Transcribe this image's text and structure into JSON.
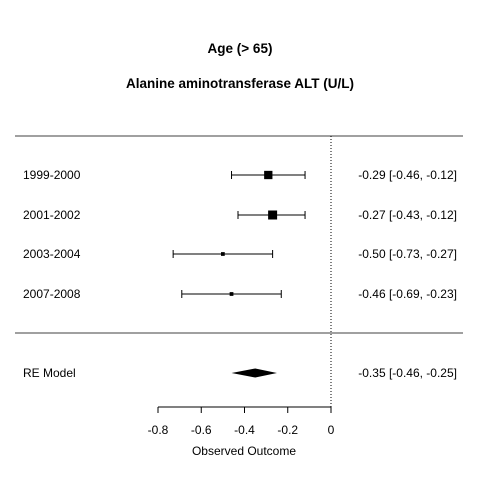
{
  "chart_data": {
    "type": "forest",
    "title": "Age (> 65)",
    "subtitle": "Alanine aminotransferase ALT (U/L)",
    "xlabel": "Observed Outcome",
    "xlim": [
      -0.8,
      0
    ],
    "ticks": [
      -0.8,
      -0.6,
      -0.4,
      -0.2,
      0
    ],
    "tick_labels": [
      "-0.8",
      "-0.6",
      "-0.4",
      "-0.2",
      "0"
    ],
    "reference_line": 0,
    "studies": [
      {
        "label": "1999-2000",
        "estimate": -0.29,
        "lower": -0.46,
        "upper": -0.12,
        "weight": 0.9,
        "ci_text": "-0.29 [-0.46, -0.12]"
      },
      {
        "label": "2001-2002",
        "estimate": -0.27,
        "lower": -0.43,
        "upper": -0.12,
        "weight": 1.0,
        "ci_text": "-0.27 [-0.43, -0.12]"
      },
      {
        "label": "2003-2004",
        "estimate": -0.5,
        "lower": -0.73,
        "upper": -0.27,
        "weight": 0.25,
        "ci_text": "-0.50 [-0.73, -0.27]"
      },
      {
        "label": "2007-2008",
        "estimate": -0.46,
        "lower": -0.69,
        "upper": -0.23,
        "weight": 0.25,
        "ci_text": "-0.46 [-0.69, -0.23]"
      }
    ],
    "summary": {
      "label": "RE Model",
      "estimate": -0.35,
      "lower": -0.46,
      "upper": -0.25,
      "ci_text": "-0.35 [-0.46, -0.25]"
    }
  }
}
